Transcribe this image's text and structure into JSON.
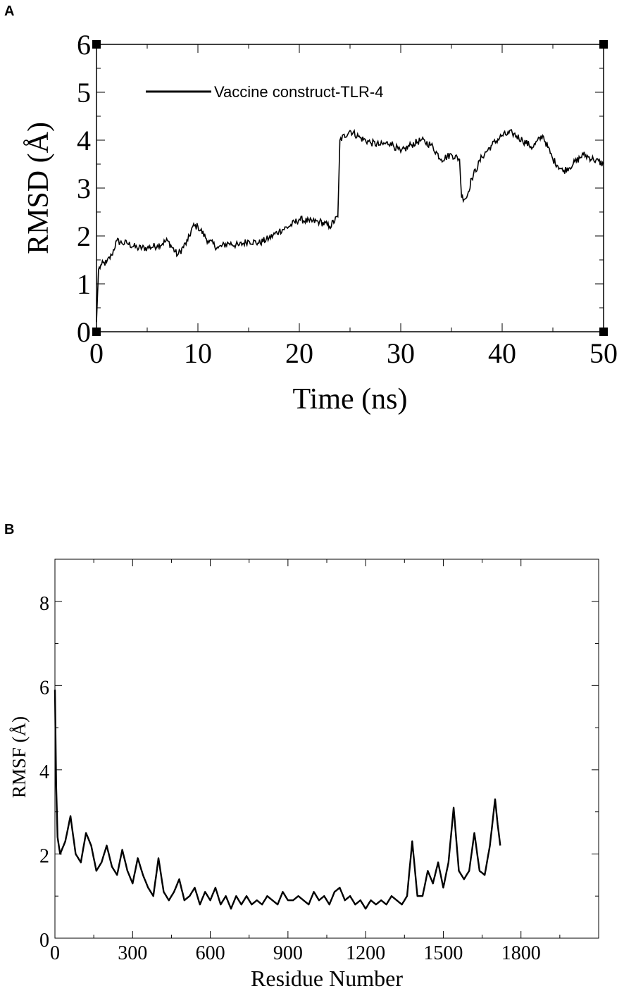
{
  "chart_data": [
    {
      "panel": "A",
      "type": "line",
      "xlabel": "Time (ns)",
      "ylabel": "RMSD (Å)",
      "xlim": [
        0,
        50
      ],
      "ylim": [
        0,
        6
      ],
      "xticks": [
        0,
        10,
        20,
        30,
        40,
        50
      ],
      "yticks": [
        0,
        1,
        2,
        3,
        4,
        5,
        6
      ],
      "legend": "top-left",
      "grid": false,
      "series": [
        {
          "name": "Vaccine construct-TLR-4",
          "color": "#000000",
          "x": [
            0,
            0.2,
            0.5,
            1,
            1.5,
            2,
            2.5,
            3,
            4,
            5,
            6,
            7,
            8,
            9,
            9.5,
            10,
            11,
            12,
            13,
            14,
            15,
            16,
            17,
            18,
            19,
            20,
            21,
            22,
            23,
            23.8,
            24,
            25,
            26,
            27,
            28,
            29,
            30,
            31,
            32,
            33,
            34,
            35,
            35.8,
            36,
            36.5,
            37,
            38,
            39,
            40,
            41,
            42,
            43,
            44,
            45,
            46,
            47,
            48,
            49,
            50
          ],
          "y": [
            0.2,
            1.3,
            1.4,
            1.45,
            1.6,
            1.9,
            1.85,
            1.85,
            1.75,
            1.75,
            1.8,
            1.9,
            1.6,
            1.9,
            2.2,
            2.2,
            1.9,
            1.75,
            1.85,
            1.8,
            1.9,
            1.85,
            1.95,
            2.1,
            2.2,
            2.35,
            2.3,
            2.3,
            2.2,
            2.4,
            4.0,
            4.2,
            4.05,
            3.95,
            3.9,
            3.95,
            3.75,
            3.9,
            4.0,
            3.9,
            3.6,
            3.7,
            3.6,
            2.8,
            2.8,
            3.2,
            3.65,
            3.9,
            4.1,
            4.15,
            4.0,
            3.85,
            4.1,
            3.6,
            3.35,
            3.5,
            3.7,
            3.6,
            3.5
          ]
        }
      ]
    },
    {
      "panel": "B",
      "type": "line",
      "xlabel": "Residue Number",
      "ylabel": "RMSF (Å)",
      "xlim": [
        0,
        2100
      ],
      "ylim": [
        0,
        9
      ],
      "xticks": [
        0,
        300,
        600,
        900,
        1200,
        1500,
        1800
      ],
      "yticks": [
        0,
        2,
        4,
        6,
        8
      ],
      "grid": false,
      "series": [
        {
          "color": "#000000",
          "x": [
            0,
            5,
            10,
            20,
            40,
            60,
            80,
            100,
            120,
            140,
            160,
            180,
            200,
            220,
            240,
            260,
            280,
            300,
            320,
            340,
            360,
            380,
            400,
            420,
            440,
            460,
            480,
            500,
            520,
            540,
            560,
            580,
            600,
            620,
            640,
            660,
            680,
            700,
            720,
            740,
            760,
            780,
            800,
            820,
            840,
            860,
            880,
            900,
            920,
            940,
            960,
            980,
            1000,
            1020,
            1040,
            1060,
            1080,
            1100,
            1120,
            1140,
            1160,
            1180,
            1200,
            1220,
            1240,
            1260,
            1280,
            1300,
            1320,
            1340,
            1360,
            1380,
            1400,
            1420,
            1440,
            1460,
            1480,
            1500,
            1520,
            1540,
            1560,
            1580,
            1600,
            1620,
            1640,
            1660,
            1680,
            1700,
            1710,
            1720
          ],
          "y": [
            5.9,
            3.6,
            2.4,
            2.0,
            2.3,
            2.9,
            2.0,
            1.8,
            2.5,
            2.2,
            1.6,
            1.8,
            2.2,
            1.7,
            1.5,
            2.1,
            1.6,
            1.3,
            1.9,
            1.5,
            1.2,
            1.0,
            1.9,
            1.1,
            0.9,
            1.1,
            1.4,
            0.9,
            1.0,
            1.2,
            0.8,
            1.1,
            0.9,
            1.2,
            0.8,
            1.0,
            0.7,
            1.0,
            0.8,
            1.0,
            0.8,
            0.9,
            0.8,
            1.0,
            0.9,
            0.8,
            1.1,
            0.9,
            0.9,
            1.0,
            0.9,
            0.8,
            1.1,
            0.9,
            1.0,
            0.8,
            1.1,
            1.2,
            0.9,
            1.0,
            0.8,
            0.9,
            0.7,
            0.9,
            0.8,
            0.9,
            0.8,
            1.0,
            0.9,
            0.8,
            1.0,
            2.3,
            1.0,
            1.0,
            1.6,
            1.3,
            1.8,
            1.2,
            1.8,
            3.1,
            1.6,
            1.4,
            1.6,
            2.5,
            1.6,
            1.5,
            2.2,
            3.3,
            2.7,
            2.2
          ]
        }
      ]
    }
  ]
}
